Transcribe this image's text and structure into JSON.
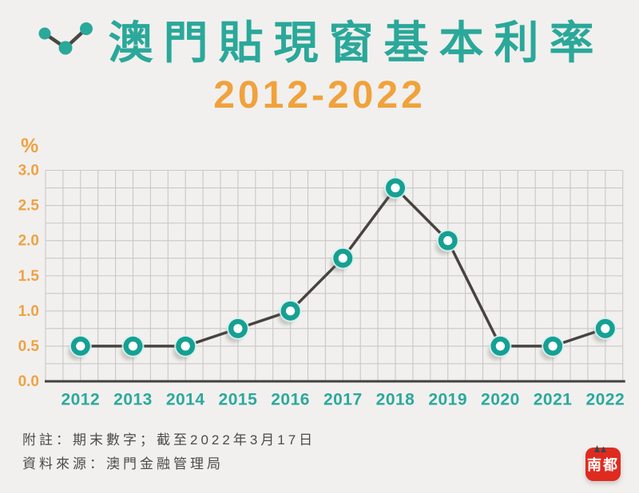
{
  "page": {
    "background": "#f1f0ee"
  },
  "header": {
    "title": "澳門貼現窗基本利率",
    "title_color": "#2aa89a",
    "subtitle": "2012-2022",
    "subtitle_color": "#f0a23c"
  },
  "chart_data": {
    "type": "line",
    "title": "澳門貼現窗基本利率",
    "subtitle": "2012-2022",
    "unit_label": "%",
    "categories": [
      "2012",
      "2013",
      "2014",
      "2015",
      "2016",
      "2017",
      "2018",
      "2019",
      "2020",
      "2021",
      "2022"
    ],
    "series": [
      {
        "name": "貼現窗基本利率(%)",
        "values": [
          0.5,
          0.5,
          0.5,
          0.75,
          1.0,
          1.75,
          2.75,
          2.0,
          0.5,
          0.5,
          0.75
        ]
      }
    ],
    "y_ticks": [
      "0.0",
      "0.5",
      "1.0",
      "1.5",
      "2.0",
      "2.5",
      "3.0"
    ],
    "ylim": [
      0,
      3
    ],
    "grid": true,
    "minor_grid_step": 0.25,
    "legend": "none",
    "colors": {
      "line": "#474440",
      "marker": "#15a093",
      "marker_inner": "#fdfffe",
      "marker_halo": "#d7f1ed",
      "marker_shadow": "#68675f",
      "grid": "#c9c8c5",
      "axis": "#45423d",
      "x_tick": "#2ba99c",
      "y_tick": "#efa243"
    }
  },
  "footer": {
    "note": "附註：期末數字；截至2022年3月17日",
    "source": "資料來源：澳門金融管理局",
    "color": "#4c4b49"
  },
  "logo": {
    "text": "南都",
    "bg": "#df2b1f",
    "text_color": "#ffffff"
  }
}
